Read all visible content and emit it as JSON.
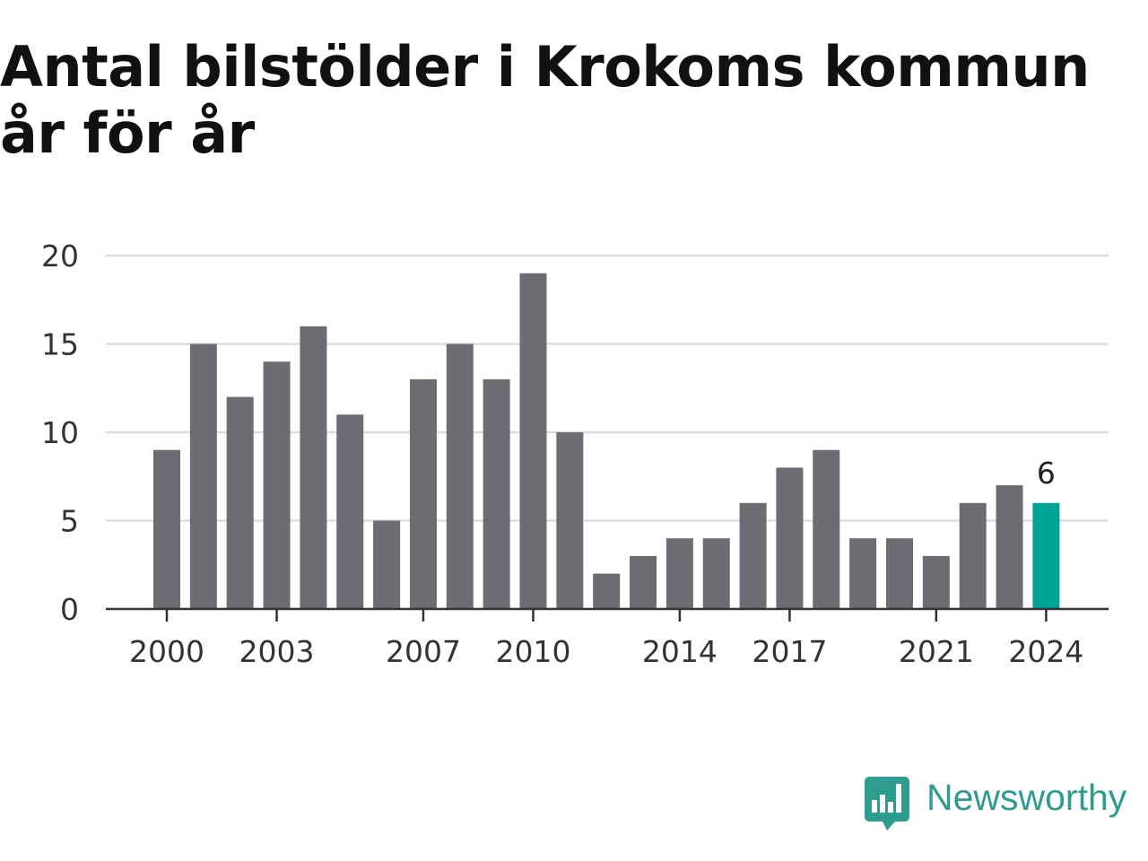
{
  "chart_data": {
    "type": "bar",
    "title": "Antal bilstölder i Krokoms kommun år för år",
    "xlabel": "",
    "ylabel": "",
    "categories": [
      "2000",
      "2001",
      "2002",
      "2003",
      "2004",
      "2005",
      "2006",
      "2007",
      "2008",
      "2009",
      "2010",
      "2011",
      "2012",
      "2013",
      "2014",
      "2015",
      "2016",
      "2017",
      "2018",
      "2019",
      "2020",
      "2021",
      "2022",
      "2023",
      "2024"
    ],
    "values": [
      9,
      15,
      12,
      14,
      16,
      11,
      5,
      13,
      15,
      13,
      19,
      10,
      2,
      3,
      4,
      4,
      6,
      8,
      9,
      4,
      4,
      3,
      6,
      7,
      6
    ],
    "ylim": [
      0,
      20
    ],
    "yticks": [
      0,
      5,
      10,
      15,
      20
    ],
    "xticks": [
      "2000",
      "2003",
      "2007",
      "2010",
      "2014",
      "2017",
      "2021",
      "2024"
    ],
    "grid": true,
    "bar_color": "#6d6c72",
    "highlight_color": "#00a497",
    "highlight": {
      "category": "2024",
      "label": "6"
    }
  },
  "brand": {
    "name": "Newsworthy",
    "color": "#2e9c8f",
    "icon": "chart-bubble-icon"
  }
}
